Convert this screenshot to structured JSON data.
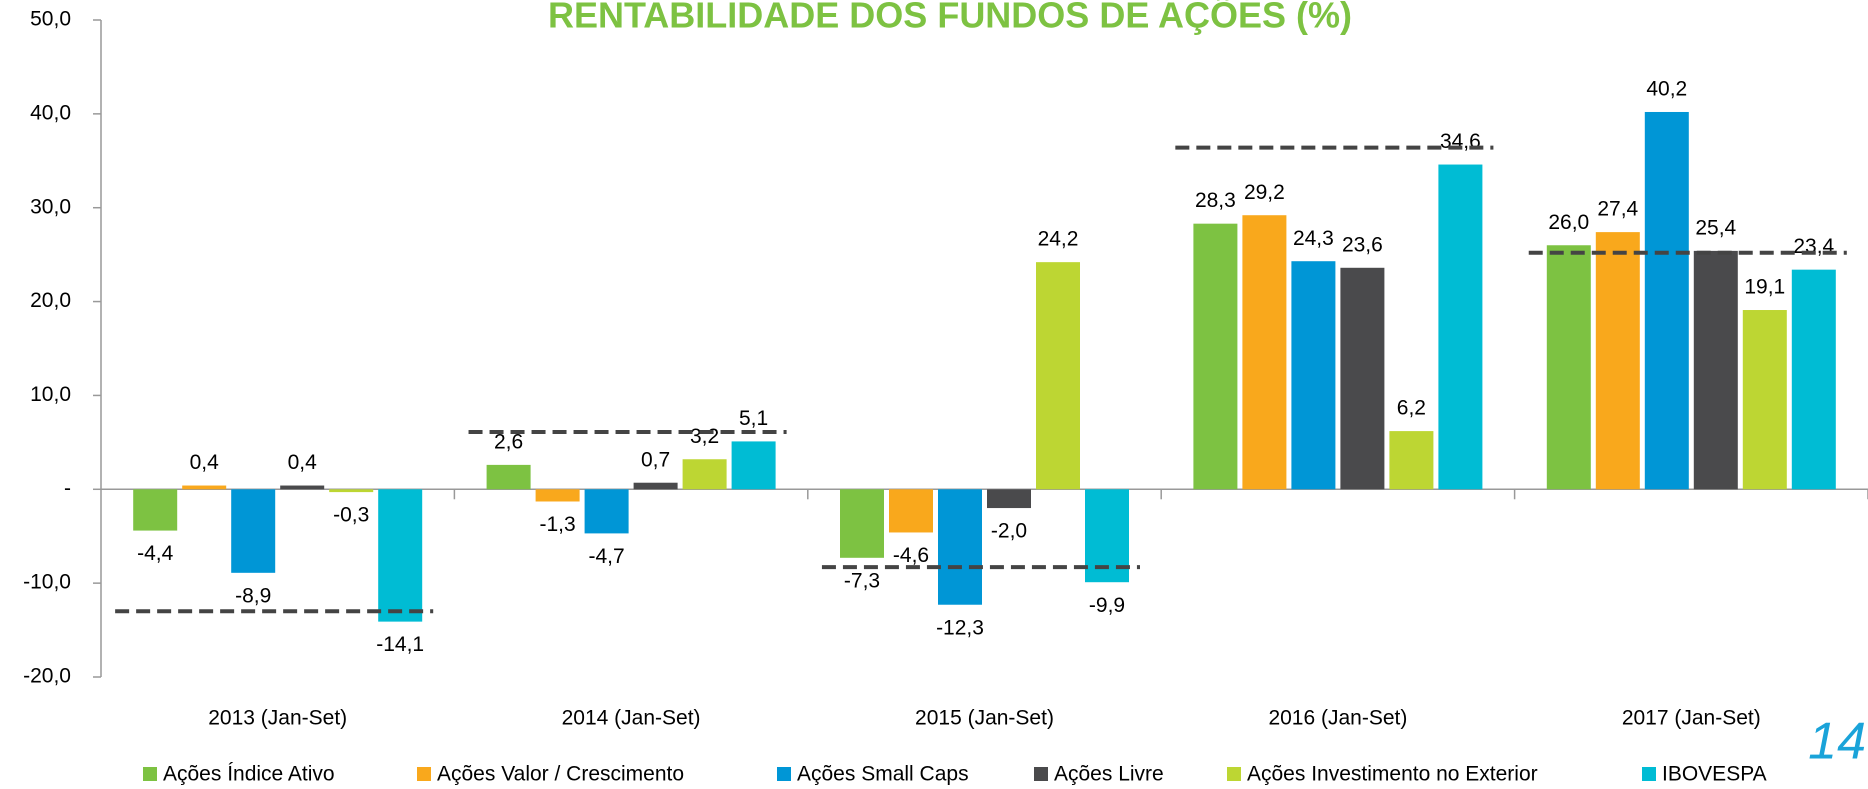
{
  "chart_data": {
    "type": "bar",
    "title": "RENTABILIDADE DOS FUNDOS DE AÇÕES (%)",
    "page_number": "14",
    "categories": [
      "2013 (Jan-Set)",
      "2014 (Jan-Set)",
      "2015 (Jan-Set)",
      "2016 (Jan-Set)",
      "2017 (Jan-Set)"
    ],
    "series": [
      {
        "name": "Ações Índice Ativo",
        "color": "#7dc242",
        "values": [
          -4.4,
          2.6,
          -7.3,
          28.3,
          26.0
        ],
        "value_labels": [
          "-4,4",
          "2,6",
          "-7,3",
          "28,3",
          "26,0"
        ]
      },
      {
        "name": "Ações Valor / Crescimento",
        "color": "#f9a81c",
        "values": [
          0.4,
          -1.3,
          -4.6,
          29.2,
          27.4
        ],
        "value_labels": [
          "0,4",
          "-1,3",
          "-4,6",
          "29,2",
          "27,4"
        ]
      },
      {
        "name": "Ações Small Caps",
        "color": "#0096d6",
        "values": [
          -8.9,
          -4.7,
          -12.3,
          24.3,
          40.2
        ],
        "value_labels": [
          "-8,9",
          "-4,7",
          "-12,3",
          "24,3",
          "40,2"
        ]
      },
      {
        "name": "Ações Livre",
        "color": "#4a4a4c",
        "values": [
          0.4,
          0.7,
          -2.0,
          23.6,
          25.4
        ],
        "value_labels": [
          "0,4",
          "0,7",
          "-2,0",
          "23,6",
          "25,4"
        ]
      },
      {
        "name": "Ações Investimento no Exterior",
        "color": "#bdd633",
        "values": [
          -0.3,
          3.2,
          24.2,
          6.2,
          19.1
        ],
        "value_labels": [
          "-0,3",
          "3,2",
          "24,2",
          "6,2",
          "19,1"
        ]
      },
      {
        "name": "IBOVESPA",
        "color": "#00bcd4",
        "values": [
          -14.1,
          5.1,
          -9.9,
          34.6,
          23.4
        ],
        "value_labels": [
          "-14,1",
          "5,1",
          "-9,9",
          "34,6",
          "23,4"
        ]
      }
    ],
    "dashed_lines": {
      "color": "#444444",
      "values": [
        -13.0,
        6.1,
        -8.3,
        36.4,
        25.2
      ]
    },
    "ylim": [
      -20,
      50
    ],
    "yticks": [
      {
        "value": -20,
        "label": "-20,0"
      },
      {
        "value": -10,
        "label": "-10,0"
      },
      {
        "value": 0,
        "label": "-"
      },
      {
        "value": 10,
        "label": "10,0"
      },
      {
        "value": 20,
        "label": "20,0"
      },
      {
        "value": 30,
        "label": "30,0"
      },
      {
        "value": 40,
        "label": "40,0"
      },
      {
        "value": 50,
        "label": "50,0"
      }
    ],
    "legend": "bottom",
    "grid": false
  }
}
